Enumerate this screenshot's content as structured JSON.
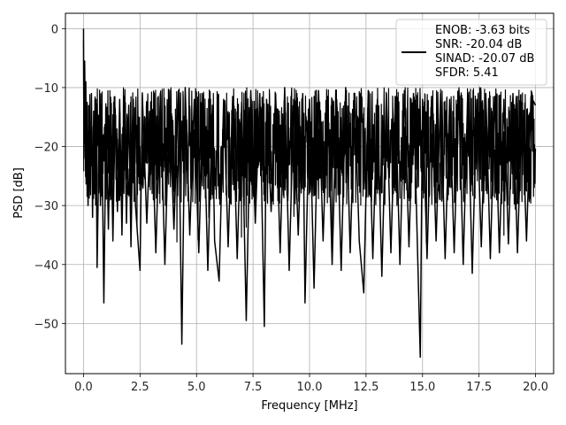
{
  "chart_data": {
    "type": "line",
    "title": "",
    "xlabel": "Frequency [MHz]",
    "ylabel": "PSD [dB]",
    "xlim": [
      -0.8,
      20.8
    ],
    "ylim": [
      -58.5,
      2.6
    ],
    "xticks": [
      0.0,
      2.5,
      5.0,
      7.5,
      10.0,
      12.5,
      15.0,
      17.5,
      20.0
    ],
    "xtick_labels": [
      "0.0",
      "2.5",
      "5.0",
      "7.5",
      "10.0",
      "12.5",
      "15.0",
      "17.5",
      "20.0"
    ],
    "yticks": [
      0,
      -10,
      -20,
      -30,
      -40,
      -50
    ],
    "ytick_labels": [
      "0",
      "−10",
      "−20",
      "−30",
      "−40",
      "−50"
    ],
    "grid": true,
    "legend_position": "top-right",
    "legend_entries": [
      "ENOB: -3.63 bits",
      "SNR: -20.04 dB",
      "SINAD: -20.07 dB",
      "SFDR: 5.41"
    ],
    "series": [
      {
        "color": "#000000",
        "x": [
          0.0,
          0.02,
          0.05,
          0.08,
          0.1,
          0.14,
          0.17,
          0.2,
          0.25,
          0.3,
          0.35,
          0.4,
          0.45,
          0.5,
          0.55,
          0.6,
          0.7,
          0.75,
          0.8,
          0.9,
          1.0,
          1.1,
          1.2,
          1.3,
          1.4,
          1.5,
          1.6,
          1.7,
          1.8,
          1.9,
          2.0,
          2.1,
          2.2,
          2.3,
          2.5,
          2.6,
          2.8,
          3.0,
          3.2,
          3.4,
          3.6,
          3.8,
          4.0,
          4.2,
          4.35,
          4.5,
          4.7,
          4.9,
          5.1,
          5.3,
          5.5,
          5.7,
          5.8,
          6.0,
          6.2,
          6.4,
          6.6,
          6.8,
          7.0,
          7.2,
          7.4,
          7.6,
          7.8,
          8.0,
          8.1,
          8.3,
          8.5,
          8.7,
          8.9,
          9.1,
          9.3,
          9.5,
          9.7,
          9.8,
          10.0,
          10.2,
          10.4,
          10.6,
          10.8,
          11.0,
          11.2,
          11.4,
          11.6,
          11.8,
          12.0,
          12.2,
          12.4,
          12.6,
          12.8,
          13.0,
          13.2,
          13.4,
          13.6,
          13.8,
          14.0,
          14.2,
          14.4,
          14.6,
          14.9,
          15.0,
          15.2,
          15.4,
          15.6,
          15.8,
          16.0,
          16.2,
          16.4,
          16.6,
          16.8,
          17.0,
          17.2,
          17.4,
          17.6,
          17.8,
          18.0,
          18.2,
          18.4,
          18.6,
          18.8,
          19.0,
          19.2,
          19.4,
          19.6,
          19.8,
          20.0
        ],
        "y": [
          0.0,
          -22.0,
          -5.5,
          -18.0,
          -9.0,
          -26.0,
          -13.0,
          -30.0,
          -15.0,
          -25.0,
          -11.0,
          -32.0,
          -14.0,
          -28.0,
          -12.0,
          -40.5,
          -16.0,
          -30.0,
          -13.0,
          -46.5,
          -14.0,
          -34.0,
          -12.0,
          -36.0,
          -13.5,
          -31.0,
          -12.0,
          -35.0,
          -11.5,
          -33.0,
          -13.0,
          -37.0,
          -12.0,
          -30.0,
          -41.0,
          -11.0,
          -33.0,
          -12.5,
          -38.0,
          -11.0,
          -40.0,
          -12.0,
          -34.0,
          -10.5,
          -53.5,
          -10.0,
          -35.0,
          -12.0,
          -38.0,
          -11.0,
          -41.0,
          -13.0,
          -36.0,
          -42.8,
          -12.0,
          -37.0,
          -11.5,
          -39.0,
          -12.5,
          -49.5,
          -10.5,
          -33.0,
          -11.0,
          -50.5,
          -12.0,
          -31.0,
          -11.0,
          -38.0,
          -10.0,
          -41.0,
          -12.0,
          -35.0,
          -11.0,
          -46.5,
          -12.0,
          -44.0,
          -10.5,
          -36.0,
          -11.5,
          -40.0,
          -12.0,
          -41.0,
          -10.0,
          -38.0,
          -11.0,
          -36.0,
          -44.8,
          -10.5,
          -39.0,
          -12.0,
          -42.0,
          -11.0,
          -38.0,
          -11.5,
          -40.0,
          -10.5,
          -37.0,
          -11.0,
          -55.7,
          -12.0,
          -39.0,
          -11.5,
          -36.0,
          -11.0,
          -39.0,
          -12.0,
          -38.0,
          -10.5,
          -40.0,
          -11.0,
          -41.5,
          -12.0,
          -37.0,
          -11.0,
          -39.0,
          -11.5,
          -38.0,
          -12.0,
          -36.5,
          -11.0,
          -38.0,
          -12.5,
          -36.0,
          -11.5,
          -13.0
        ]
      }
    ]
  }
}
